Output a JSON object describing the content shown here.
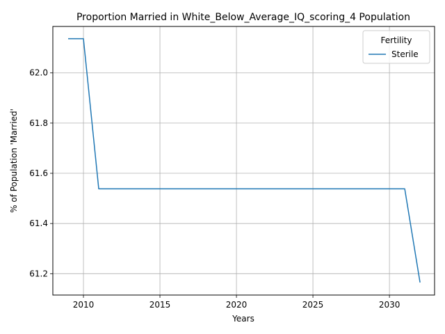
{
  "chart_data": {
    "type": "line",
    "title": "Proportion Married in White_Below_Average_IQ_scoring_4 Population",
    "xlabel": "Years",
    "ylabel": "% of Population 'Married'",
    "xlim": [
      2008,
      2032.95
    ],
    "ylim": [
      61.115,
      62.185
    ],
    "xticks": [
      2010,
      2015,
      2020,
      2025,
      2030
    ],
    "yticks": [
      61.2,
      61.4,
      61.6,
      61.8,
      62.0
    ],
    "grid": true,
    "legend": {
      "title": "Fertility",
      "placement": "top-right"
    },
    "series": [
      {
        "name": "Sterile",
        "color": "#1f77b4",
        "x": [
          2009,
          2010,
          2011,
          2012,
          2013,
          2014,
          2015,
          2016,
          2017,
          2018,
          2019,
          2020,
          2021,
          2022,
          2023,
          2024,
          2025,
          2026,
          2027,
          2028,
          2029,
          2030,
          2031,
          2032
        ],
        "y": [
          62.136,
          62.136,
          61.538,
          61.538,
          61.538,
          61.538,
          61.538,
          61.538,
          61.538,
          61.538,
          61.538,
          61.538,
          61.538,
          61.538,
          61.538,
          61.538,
          61.538,
          61.538,
          61.538,
          61.538,
          61.538,
          61.538,
          61.538,
          61.165
        ]
      }
    ]
  }
}
